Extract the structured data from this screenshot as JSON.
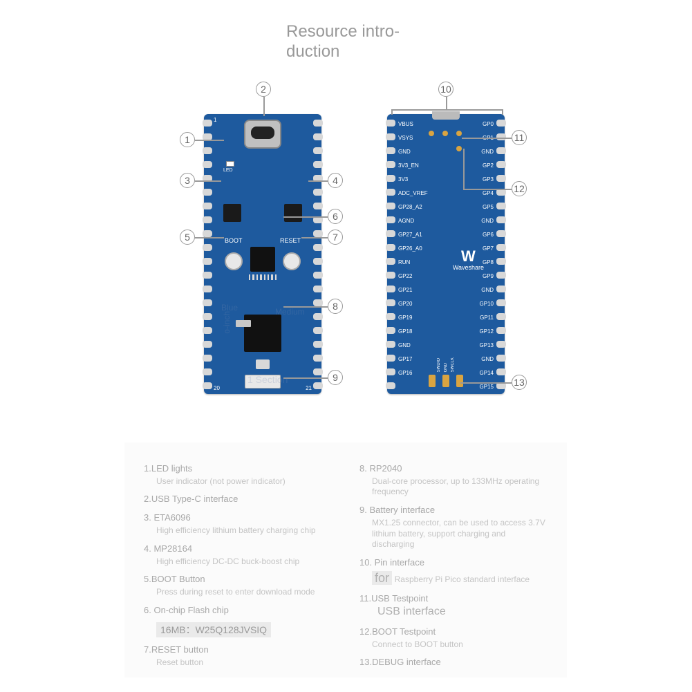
{
  "title": "Resource intro-\nduction",
  "watermarks": {
    "blue": "Blue",
    "medium": "Medium",
    "o_inch": "o-inch",
    "section": "1 Section"
  },
  "callouts": {
    "1": "1",
    "2": "2",
    "3": "3",
    "4": "4",
    "5": "5",
    "6": "6",
    "7": "7",
    "8": "8",
    "9": "9",
    "10": "10",
    "11": "11",
    "12": "12",
    "13": "13"
  },
  "front": {
    "boot_label": "BOOT",
    "reset_label": "RESET",
    "pin_1": "1",
    "pin_20": "20",
    "pin_21": "21",
    "led_silk": "LED"
  },
  "back": {
    "brand_logo": "W",
    "brand_name": "Waveshare",
    "pins_left": [
      "VBUS",
      "VSYS",
      "GND",
      "3V3_EN",
      "3V3",
      "ADC_VREF",
      "GP28_A2",
      "AGND",
      "GP27_A1",
      "GP26_A0",
      "RUN",
      "GP22",
      "GP21",
      "GP20",
      "GP19",
      "GP18",
      "GND",
      "GP17",
      "GP16"
    ],
    "pins_right": [
      "GP0",
      "GP1",
      "GND",
      "GP2",
      "GP3",
      "GP4",
      "GP5",
      "GND",
      "GP6",
      "GP7",
      "GP8",
      "GP9",
      "GND",
      "GP10",
      "GP11",
      "GP12",
      "GP13",
      "GND",
      "GP14",
      "GP15"
    ],
    "debug": [
      "SWDIO",
      "GND",
      "SWCLK"
    ]
  },
  "legend_left": [
    {
      "t": "1.LED lights",
      "d": "User indicator (not power indicator)"
    },
    {
      "t": "2.USB Type-C interface",
      "d": ""
    },
    {
      "t": "3. ETA6096",
      "d": "High efficiency lithium battery charging chip"
    },
    {
      "t": "4. MP28164",
      "d": "High efficiency DC-DC buck-boost chip"
    },
    {
      "t": "5.BOOT Button",
      "d": "Press during reset to enter download mode"
    },
    {
      "t": "6. On-chip Flash chip",
      "d": "",
      "extra": "16MB：W25Q128JVSIQ"
    },
    {
      "t": "7.RESET button",
      "d": "Reset button"
    }
  ],
  "legend_right": [
    {
      "t": "8. RP2040",
      "d": "Dual-core processor, up to 133MHz operating frequency"
    },
    {
      "t": "9. Battery interface",
      "d": "MX1.25 connector, can be used to access 3.7V lithium battery, support charging and discharging"
    },
    {
      "t": "10. Pin interface",
      "d": "",
      "for": "for",
      "for_desc": "Raspberry Pi Pico standard interface"
    },
    {
      "t": "11.USB Testpoint",
      "d": "",
      "sub": "USB interface"
    },
    {
      "t": "12.BOOT Testpoint",
      "d": "Connect to BOOT button"
    },
    {
      "t": "13.DEBUG interface",
      "d": ""
    }
  ],
  "colors": {
    "board": "#1e5a9e",
    "pad_gold": "#d9a441",
    "silk_white": "#ffffff",
    "chip_black": "#111111",
    "text_grey": "#999999",
    "legend_bg": "#fbfbfb"
  }
}
